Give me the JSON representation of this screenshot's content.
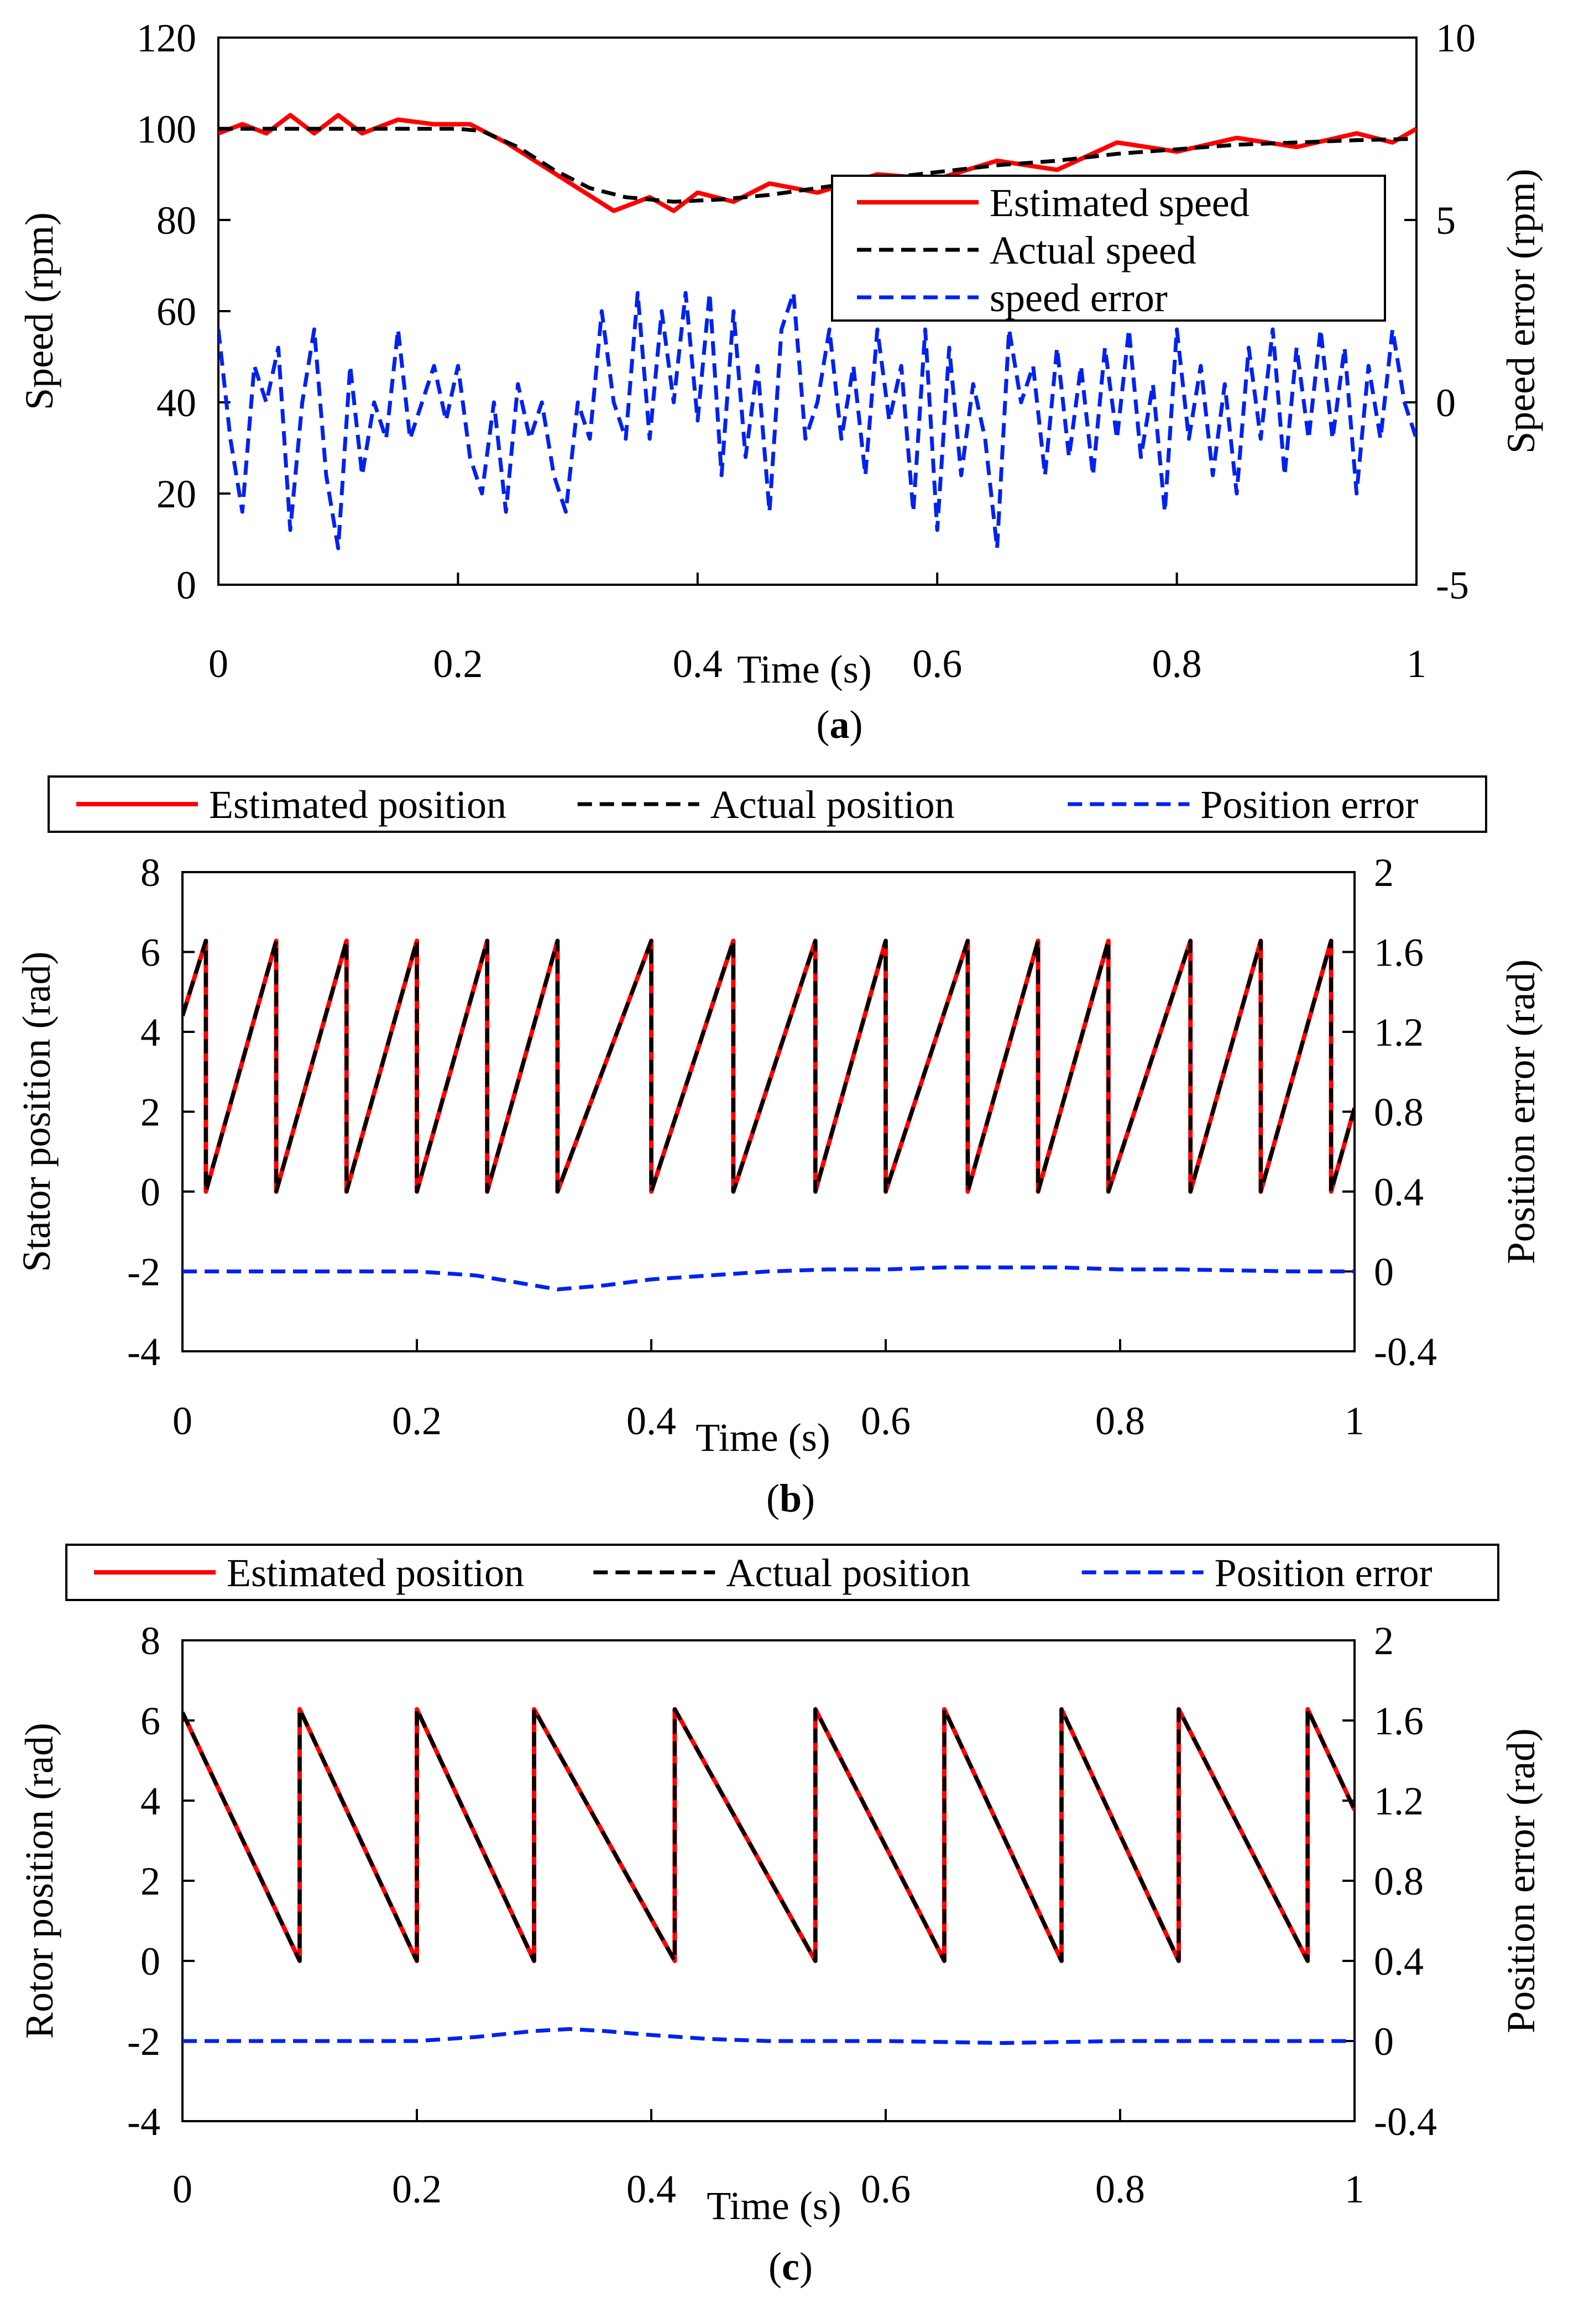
{
  "chart_data": [
    {
      "type": "line",
      "caption": "a",
      "xlabel": "Time (s)",
      "ylabel": "Speed  (rpm)",
      "y2label": "Speed error (rpm)",
      "xlim": [
        0,
        1
      ],
      "ylim": [
        0,
        120
      ],
      "y2lim": [
        -5,
        10
      ],
      "xticks": [
        "0",
        "0.2",
        "0.4",
        "0.6",
        "0.8",
        "1"
      ],
      "yticks": [
        "0",
        "20",
        "40",
        "60",
        "80",
        "100",
        "120"
      ],
      "y2ticks": [
        "-5",
        "0",
        "5",
        "10"
      ],
      "legend": {
        "position": "inside-right",
        "entries": [
          "Estimated speed",
          "Actual speed",
          "speed error"
        ]
      },
      "series": [
        {
          "name": "Estimated speed",
          "axis": "left",
          "color": "#ff0000",
          "style": "solid",
          "x": [
            0,
            0.02,
            0.04,
            0.06,
            0.08,
            0.1,
            0.12,
            0.15,
            0.18,
            0.21,
            0.24,
            0.27,
            0.3,
            0.33,
            0.36,
            0.38,
            0.4,
            0.43,
            0.46,
            0.5,
            0.55,
            0.6,
            0.65,
            0.7,
            0.75,
            0.8,
            0.85,
            0.9,
            0.95,
            0.98,
            1.0
          ],
          "values": [
            99,
            101,
            99,
            103,
            99,
            103,
            99,
            102,
            101,
            101,
            97,
            92,
            87,
            82,
            85,
            82,
            86,
            84,
            88,
            86,
            90,
            89,
            93,
            91,
            97,
            95,
            98,
            96,
            99,
            97,
            100
          ]
        },
        {
          "name": "Actual speed",
          "axis": "left",
          "color": "#000000",
          "style": "dashed",
          "x": [
            0,
            0.05,
            0.1,
            0.15,
            0.2,
            0.22,
            0.25,
            0.28,
            0.31,
            0.34,
            0.38,
            0.42,
            0.46,
            0.5,
            0.55,
            0.6,
            0.65,
            0.7,
            0.75,
            0.8,
            0.85,
            0.9,
            0.95,
            1.0
          ],
          "values": [
            100,
            100,
            100,
            100,
            100,
            99.5,
            96,
            91,
            87,
            85,
            84,
            84.5,
            85.5,
            87,
            89,
            90.5,
            92,
            93,
            94.5,
            95.5,
            96.5,
            97,
            97.5,
            97.8
          ]
        },
        {
          "name": "speed error",
          "axis": "right",
          "color": "#0022ee",
          "style": "dashed",
          "x": [
            0,
            0.01,
            0.02,
            0.03,
            0.04,
            0.05,
            0.06,
            0.07,
            0.08,
            0.09,
            0.1,
            0.11,
            0.12,
            0.13,
            0.14,
            0.15,
            0.16,
            0.17,
            0.18,
            0.19,
            0.2,
            0.21,
            0.22,
            0.23,
            0.24,
            0.25,
            0.26,
            0.27,
            0.28,
            0.29,
            0.3,
            0.31,
            0.32,
            0.33,
            0.34,
            0.35,
            0.36,
            0.37,
            0.38,
            0.39,
            0.4,
            0.41,
            0.42,
            0.43,
            0.44,
            0.45,
            0.46,
            0.47,
            0.48,
            0.49,
            0.5,
            0.51,
            0.52,
            0.53,
            0.54,
            0.55,
            0.56,
            0.57,
            0.58,
            0.59,
            0.6,
            0.61,
            0.62,
            0.63,
            0.64,
            0.65,
            0.66,
            0.67,
            0.68,
            0.69,
            0.7,
            0.71,
            0.72,
            0.73,
            0.74,
            0.75,
            0.76,
            0.77,
            0.78,
            0.79,
            0.8,
            0.81,
            0.82,
            0.83,
            0.84,
            0.85,
            0.86,
            0.87,
            0.88,
            0.89,
            0.9,
            0.91,
            0.92,
            0.93,
            0.94,
            0.95,
            0.96,
            0.97,
            0.98,
            0.99,
            1.0
          ],
          "values": [
            2,
            -1,
            -3,
            1,
            0,
            1.5,
            -3.5,
            0,
            2,
            -2,
            -4,
            1,
            -2,
            0,
            -1,
            2,
            -1,
            0,
            1,
            -0.5,
            1,
            -1.5,
            -2.5,
            0,
            -3,
            0.5,
            -1,
            0,
            -2,
            -3,
            0,
            -1,
            2.5,
            0,
            -1,
            3,
            -1,
            2.5,
            0,
            3,
            -0.5,
            3,
            -2,
            2.5,
            -1.5,
            1,
            -3,
            2,
            3,
            -1,
            0,
            2,
            -1,
            1,
            -2,
            2,
            -0.5,
            1,
            -3,
            2,
            -3.5,
            1.5,
            -2,
            0.5,
            -1,
            -4,
            2,
            0,
            1,
            -2,
            1.5,
            -1.5,
            1,
            -2,
            1.5,
            -1,
            2,
            -1.5,
            0.5,
            -3,
            2,
            -1,
            1,
            -2,
            0.5,
            -2.5,
            1.5,
            -1,
            2,
            -2,
            1.5,
            -1,
            2,
            -1,
            1.5,
            -2.5,
            1,
            -1,
            2,
            0,
            -1
          ]
        }
      ]
    },
    {
      "type": "line",
      "caption": "b",
      "xlabel": "Time (s)",
      "ylabel": "Stator position (rad)",
      "y2label": "Position error (rad)",
      "xlim": [
        0,
        1
      ],
      "ylim": [
        -4,
        8
      ],
      "y2lim": [
        -0.4,
        2
      ],
      "xticks": [
        "0",
        "0.2",
        "0.4",
        "0.6",
        "0.8",
        "1"
      ],
      "yticks": [
        "-4",
        "-2",
        "0",
        "2",
        "4",
        "6",
        "8"
      ],
      "y2ticks": [
        "-0.4",
        "0",
        "0.4",
        "0.8",
        "1.2",
        "1.6",
        "2"
      ],
      "legend": {
        "position": "top",
        "entries": [
          "Estimated position",
          "Actual position",
          "Position error"
        ]
      },
      "sawtooth": {
        "direction": "rising",
        "min": 0,
        "max": 6.28,
        "start_value": 4.4,
        "wrap_times": [
          0.02,
          0.08,
          0.14,
          0.2,
          0.26,
          0.32,
          0.4,
          0.47,
          0.54,
          0.6,
          0.67,
          0.73,
          0.79,
          0.86,
          0.92,
          0.98
        ]
      },
      "series": [
        {
          "name": "Estimated position",
          "axis": "left",
          "color": "#ff0000",
          "style": "solid"
        },
        {
          "name": "Actual position",
          "axis": "left",
          "color": "#000000",
          "style": "dashed"
        },
        {
          "name": "Position error",
          "axis": "right",
          "color": "#0022ee",
          "style": "dashed",
          "x": [
            0,
            0.1,
            0.2,
            0.25,
            0.3,
            0.32,
            0.36,
            0.4,
            0.45,
            0.5,
            0.55,
            0.6,
            0.65,
            0.7,
            0.75,
            0.8,
            0.85,
            0.9,
            0.95,
            1.0
          ],
          "values": [
            0,
            0,
            0,
            -0.02,
            -0.07,
            -0.09,
            -0.07,
            -0.04,
            -0.02,
            0,
            0.01,
            0.01,
            0.02,
            0.02,
            0.02,
            0.01,
            0.01,
            0.005,
            0,
            0
          ]
        }
      ]
    },
    {
      "type": "line",
      "caption": "c",
      "xlabel": "Time (s)",
      "ylabel": "Rotor position (rad)",
      "y2label": "Position error (rad)",
      "xlim": [
        0,
        1
      ],
      "ylim": [
        -4,
        8
      ],
      "y2lim": [
        -0.4,
        2
      ],
      "xticks": [
        "0",
        "0.2",
        "0.4",
        "0.6",
        "0.8",
        "1"
      ],
      "yticks": [
        "-4",
        "-2",
        "0",
        "2",
        "4",
        "6",
        "8"
      ],
      "y2ticks": [
        "-0.4",
        "0",
        "0.4",
        "0.8",
        "1.2",
        "1.6",
        "2"
      ],
      "legend": {
        "position": "top",
        "entries": [
          "Estimated position",
          "Actual position",
          "Position error"
        ]
      },
      "sawtooth": {
        "direction": "falling",
        "min": 0,
        "max": 6.28,
        "start_value": 6.2,
        "wrap_times": [
          0.1,
          0.2,
          0.3,
          0.42,
          0.54,
          0.65,
          0.75,
          0.85,
          0.96
        ]
      },
      "series": [
        {
          "name": "Estimated position",
          "axis": "left",
          "color": "#ff0000",
          "style": "solid"
        },
        {
          "name": "Actual position",
          "axis": "left",
          "color": "#000000",
          "style": "dashed"
        },
        {
          "name": "Position error",
          "axis": "right",
          "color": "#0022ee",
          "style": "dashed",
          "x": [
            0,
            0.1,
            0.2,
            0.25,
            0.3,
            0.33,
            0.36,
            0.4,
            0.45,
            0.5,
            0.6,
            0.7,
            0.8,
            0.9,
            1.0
          ],
          "values": [
            0,
            0,
            0,
            0.02,
            0.05,
            0.06,
            0.05,
            0.03,
            0.01,
            0,
            0,
            -0.01,
            0,
            0,
            0
          ]
        }
      ]
    }
  ]
}
